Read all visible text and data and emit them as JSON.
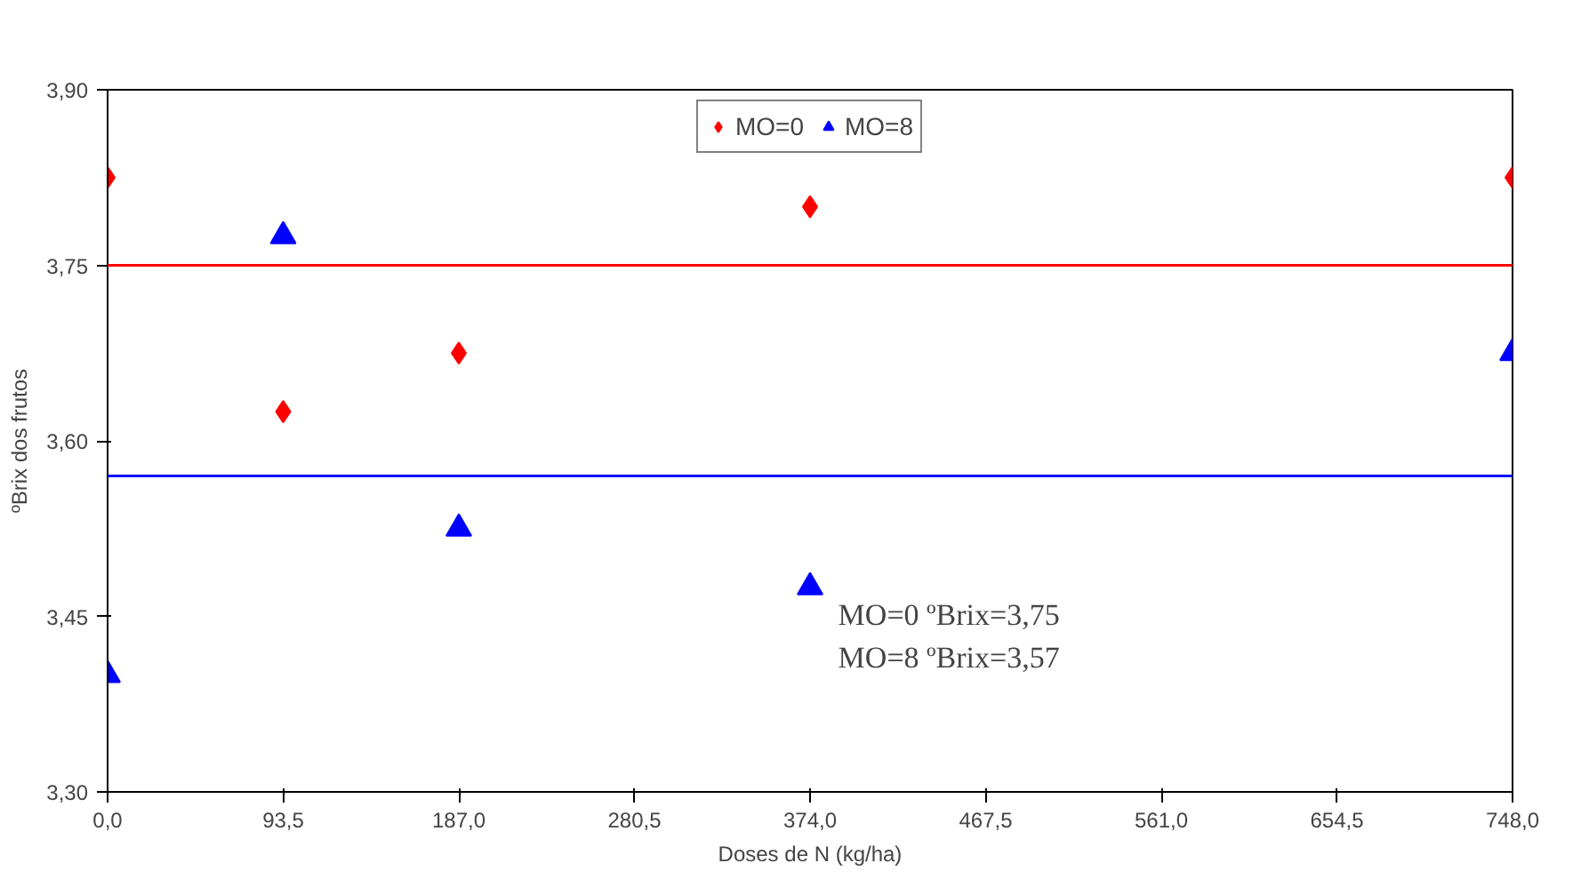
{
  "chart_data": {
    "type": "scatter",
    "xlabel": "Doses de N (kg/ha)",
    "ylabel": "ºBrix dos frutos",
    "x": [
      0,
      93.5,
      187,
      374,
      748
    ],
    "series": [
      {
        "name": "MO=0",
        "color": "#ff0000",
        "marker": "diamond",
        "values": [
          3.825,
          3.625,
          3.675,
          3.8,
          3.825
        ]
      },
      {
        "name": "MO=8",
        "color": "#0000ff",
        "marker": "triangle",
        "values": [
          3.4,
          3.775,
          3.525,
          3.475,
          3.675
        ]
      }
    ],
    "ref_lines": [
      {
        "axis": "y",
        "value": 3.75,
        "color": "#ff0000"
      },
      {
        "axis": "y",
        "value": 3.57,
        "color": "#0000ff"
      }
    ],
    "annotations": [
      "MO=0 ºBrix=3,75",
      "MO=8 ºBrix=3,57"
    ],
    "xlim": [
      0,
      748
    ],
    "xticks": [
      {
        "value": 0,
        "label": "0,0"
      },
      {
        "value": 93.5,
        "label": "93,5"
      },
      {
        "value": 187,
        "label": "187,0"
      },
      {
        "value": 280.5,
        "label": "280,5"
      },
      {
        "value": 374,
        "label": "374,0"
      },
      {
        "value": 467.5,
        "label": "467,5"
      },
      {
        "value": 561,
        "label": "561,0"
      },
      {
        "value": 654.5,
        "label": "654,5"
      },
      {
        "value": 748,
        "label": "748,0"
      }
    ],
    "ylim": [
      3.3,
      3.9
    ],
    "yticks": [
      {
        "value": 3.3,
        "label": "3,30"
      },
      {
        "value": 3.45,
        "label": "3,45"
      },
      {
        "value": 3.6,
        "label": "3,60"
      },
      {
        "value": 3.75,
        "label": "3,75"
      },
      {
        "value": 3.9,
        "label": "3,90"
      }
    ],
    "grid": false,
    "legend": "top"
  }
}
